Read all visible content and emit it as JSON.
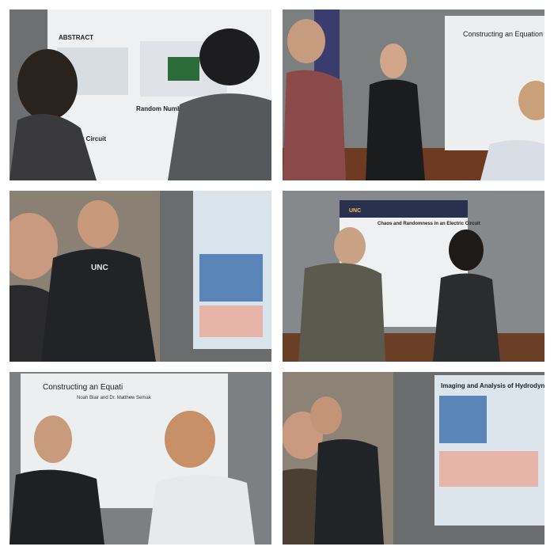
{
  "panels": [
    {
      "texts": [
        "ABSTRACT",
        "Random Number Generator",
        "Chaos Circuit"
      ]
    },
    {
      "texts": [
        "Constructing an Equation of State for"
      ]
    },
    {
      "texts": [
        "UNC"
      ]
    },
    {
      "texts": [
        "Chaos and Randomness in an Electric Circuit",
        "UNC"
      ]
    },
    {
      "texts": [
        "Constructing an Equati",
        "Noah Blair and Dr. Matthew Semak"
      ]
    },
    {
      "texts": [
        "Imaging and Analysis of Hydrodynamic Quant"
      ]
    }
  ]
}
